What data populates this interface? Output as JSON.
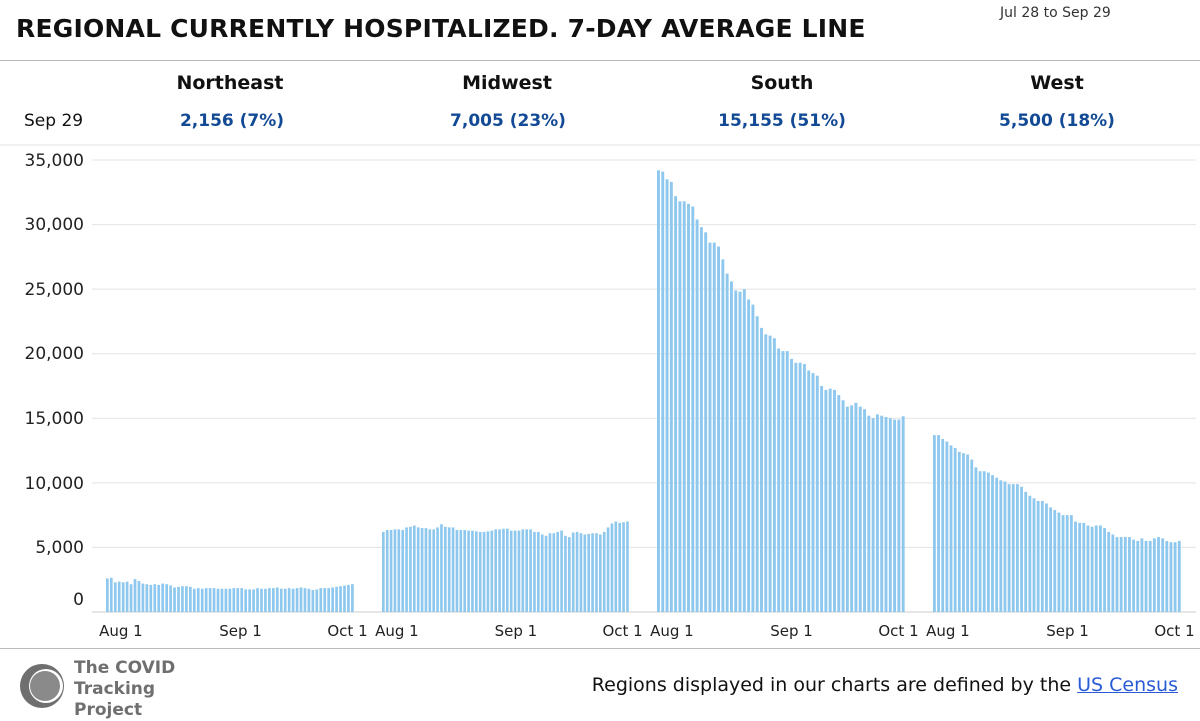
{
  "header": {
    "title": "REGIONAL CURRENTLY HOSPITALIZED. 7-DAY AVERAGE LINE",
    "date_range": "Jul 28 to Sep 29"
  },
  "summary": {
    "date_label": "Sep 29"
  },
  "footer": {
    "logo_line1": "The COVID",
    "logo_line2": "Tracking Project",
    "note": "Regions displayed in our charts are defined by the",
    "link": "US Census"
  },
  "colors": {
    "bar": "#8ec8ee",
    "value_text": "#134a95",
    "grid": "#e3e3e3"
  },
  "chart_data": [
    {
      "type": "bar",
      "region": "Northeast",
      "latest_value": "2,156 (7%)",
      "x_start": "Jul 28",
      "x_end": "Sep 29",
      "x_tick_labels": [
        "Aug 1",
        "Sep 1",
        "Oct 1"
      ],
      "y_ticks": [
        "0",
        "5,000",
        "10,000",
        "15,000",
        "20,000",
        "25,000",
        "30,000",
        "35,000"
      ],
      "ylim": [
        0,
        35000
      ],
      "values": [
        2600,
        2650,
        2300,
        2350,
        2300,
        2350,
        2150,
        2550,
        2400,
        2200,
        2150,
        2100,
        2150,
        2100,
        2200,
        2150,
        2050,
        1900,
        1950,
        2000,
        2000,
        1950,
        1800,
        1850,
        1800,
        1850,
        1850,
        1850,
        1800,
        1800,
        1800,
        1800,
        1850,
        1850,
        1850,
        1750,
        1750,
        1750,
        1850,
        1800,
        1800,
        1850,
        1850,
        1900,
        1800,
        1800,
        1850,
        1800,
        1850,
        1900,
        1850,
        1800,
        1700,
        1750,
        1850,
        1850,
        1850,
        1900,
        1950,
        2000,
        2050,
        2100,
        2156
      ]
    },
    {
      "type": "bar",
      "region": "Midwest",
      "latest_value": "7,005 (23%)",
      "x_start": "Jul 28",
      "x_end": "Sep 29",
      "x_tick_labels": [
        "Aug 1",
        "Sep 1",
        "Oct 1"
      ],
      "y_ticks": [
        "0",
        "5,000",
        "10,000",
        "15,000",
        "20,000",
        "25,000",
        "30,000",
        "35,000"
      ],
      "ylim": [
        0,
        35000
      ],
      "values": [
        6200,
        6350,
        6350,
        6400,
        6400,
        6350,
        6550,
        6600,
        6700,
        6550,
        6500,
        6500,
        6400,
        6400,
        6550,
        6800,
        6600,
        6550,
        6550,
        6350,
        6350,
        6350,
        6300,
        6300,
        6250,
        6200,
        6200,
        6250,
        6300,
        6400,
        6400,
        6450,
        6450,
        6300,
        6300,
        6300,
        6400,
        6400,
        6400,
        6200,
        6200,
        6000,
        5900,
        6100,
        6100,
        6200,
        6300,
        5900,
        5800,
        6150,
        6200,
        6100,
        6000,
        6050,
        6100,
        6100,
        6000,
        6200,
        6550,
        6850,
        7000,
        6900,
        6950,
        7005
      ]
    },
    {
      "type": "bar",
      "region": "South",
      "latest_value": "15,155 (51%)",
      "x_start": "Jul 28",
      "x_end": "Sep 29",
      "x_tick_labels": [
        "Aug 1",
        "Sep 1",
        "Oct 1"
      ],
      "y_ticks": [
        "0",
        "5,000",
        "10,000",
        "15,000",
        "20,000",
        "25,000",
        "30,000",
        "35,000"
      ],
      "ylim": [
        0,
        35000
      ],
      "values": [
        34200,
        34100,
        33500,
        33300,
        32200,
        31800,
        31800,
        31600,
        31400,
        30400,
        29800,
        29400,
        28600,
        28600,
        28300,
        27300,
        26200,
        25600,
        24900,
        24800,
        25000,
        24200,
        23800,
        22900,
        22000,
        21500,
        21400,
        21200,
        20400,
        20200,
        20200,
        19600,
        19300,
        19300,
        19200,
        18700,
        18500,
        18300,
        17500,
        17200,
        17300,
        17200,
        16800,
        16400,
        15900,
        16000,
        16200,
        15900,
        15700,
        15200,
        15000,
        15300,
        15200,
        15100,
        15000,
        14900,
        14900,
        15155
      ]
    },
    {
      "type": "bar",
      "region": "West",
      "latest_value": "5,500 (18%)",
      "x_start": "Jul 28",
      "x_end": "Sep 29",
      "x_tick_labels": [
        "Aug 1",
        "Sep 1",
        "Oct 1"
      ],
      "y_ticks": [
        "0",
        "5,000",
        "10,000",
        "15,000",
        "20,000",
        "25,000",
        "30,000",
        "35,000"
      ],
      "ylim": [
        0,
        35000
      ],
      "values": [
        13700,
        13700,
        13400,
        13200,
        12900,
        12700,
        12400,
        12300,
        12200,
        11800,
        11200,
        10900,
        10900,
        10800,
        10600,
        10400,
        10200,
        10100,
        9900,
        9900,
        9900,
        9700,
        9300,
        9000,
        8800,
        8600,
        8600,
        8400,
        8100,
        7900,
        7700,
        7500,
        7500,
        7500,
        7000,
        6900,
        6900,
        6700,
        6600,
        6700,
        6700,
        6500,
        6200,
        6000,
        5800,
        5800,
        5800,
        5800,
        5600,
        5500,
        5700,
        5500,
        5500,
        5700,
        5800,
        5700,
        5500,
        5400,
        5400,
        5500
      ]
    }
  ]
}
